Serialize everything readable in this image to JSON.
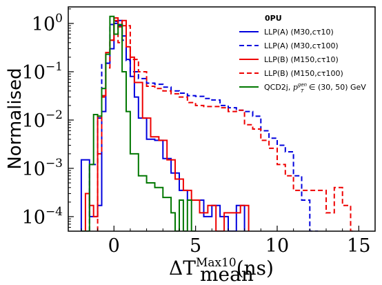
{
  "chart_data": {
    "type": "line",
    "style": "step-histogram",
    "xlabel": "ΔT",
    "xlabel_sup": "Max10",
    "xlabel_sub": "mean",
    "xlabel_unit": "(ns)",
    "ylabel": "Normalised",
    "yscale": "log",
    "xlim": [
      -2.8,
      16
    ],
    "ylim": [
      5e-05,
      2.2
    ],
    "xticks": [
      {
        "v": 0,
        "label": "0"
      },
      {
        "v": 5,
        "label": "5"
      },
      {
        "v": 10,
        "label": "10"
      },
      {
        "v": 15,
        "label": "15"
      }
    ],
    "yticks": [
      {
        "v": 0.0001,
        "base": "10",
        "exp": "−4"
      },
      {
        "v": 0.001,
        "base": "10",
        "exp": "−3"
      },
      {
        "v": 0.01,
        "base": "10",
        "exp": "−2"
      },
      {
        "v": 0.1,
        "base": "10",
        "exp": "−1"
      },
      {
        "v": 1,
        "base": "10",
        "exp": "0"
      }
    ],
    "legend": {
      "title": "0PU",
      "position": "top-right"
    },
    "series": [
      {
        "name": "LLP(A) (M30,cτ10)",
        "color": "#0000dd",
        "dash": "solid",
        "bins": [
          [
            -2.0,
            -1.5,
            0.0015
          ],
          [
            -1.5,
            -1.0,
            0.0001
          ],
          [
            -1.0,
            -0.75,
            0.00017
          ],
          [
            -0.75,
            -0.5,
            0.015
          ],
          [
            -0.5,
            -0.25,
            0.15
          ],
          [
            -0.25,
            0.0,
            0.3
          ],
          [
            0.0,
            0.25,
            1.0
          ],
          [
            0.25,
            0.5,
            1.15
          ],
          [
            0.5,
            0.75,
            0.55
          ],
          [
            0.75,
            1.0,
            0.18
          ],
          [
            1.0,
            1.25,
            0.08
          ],
          [
            1.25,
            1.5,
            0.03
          ],
          [
            1.5,
            2.0,
            0.011
          ],
          [
            2.0,
            2.5,
            0.004
          ],
          [
            2.5,
            3.0,
            0.0038
          ],
          [
            3.0,
            3.5,
            0.0016
          ],
          [
            3.5,
            4.0,
            0.0008
          ],
          [
            4.0,
            4.5,
            0.00035
          ],
          [
            4.5,
            5.0,
            0.00022
          ],
          [
            5.0,
            5.5,
            0.00022
          ],
          [
            5.5,
            6.0,
            0.0001
          ],
          [
            6.0,
            6.5,
            0.00017
          ],
          [
            6.5,
            7.0,
            0.0001
          ],
          [
            7.0,
            7.5,
            5e-05
          ],
          [
            7.5,
            8.0,
            0.00017
          ]
        ]
      },
      {
        "name": "LLP(A) (M30,cτ100)",
        "color": "#0000dd",
        "dash": "dashed",
        "bins": [
          [
            -1.5,
            -1.0,
            0.0012
          ],
          [
            -1.0,
            -0.75,
            0.011
          ],
          [
            -0.75,
            -0.5,
            0.14
          ],
          [
            -0.5,
            -0.25,
            0.15
          ],
          [
            -0.25,
            0.0,
            0.95
          ],
          [
            0.0,
            0.25,
            1.1
          ],
          [
            0.25,
            0.5,
            0.9
          ],
          [
            0.5,
            0.75,
            0.45
          ],
          [
            0.75,
            1.0,
            0.17
          ],
          [
            1.0,
            1.5,
            0.1
          ],
          [
            1.5,
            2.0,
            0.072
          ],
          [
            2.0,
            2.5,
            0.058
          ],
          [
            2.5,
            3.0,
            0.055
          ],
          [
            3.0,
            3.5,
            0.048
          ],
          [
            3.5,
            4.0,
            0.04
          ],
          [
            4.0,
            4.5,
            0.036
          ],
          [
            4.5,
            5.0,
            0.032
          ],
          [
            5.0,
            5.5,
            0.031
          ],
          [
            5.5,
            6.0,
            0.028
          ],
          [
            6.0,
            6.5,
            0.026
          ],
          [
            6.5,
            7.0,
            0.02
          ],
          [
            7.0,
            7.5,
            0.018
          ],
          [
            7.5,
            8.0,
            0.016
          ],
          [
            8.0,
            8.5,
            0.015
          ],
          [
            8.5,
            9.0,
            0.012
          ],
          [
            9.0,
            9.5,
            0.006
          ],
          [
            9.5,
            10.0,
            0.0042
          ],
          [
            10.0,
            10.5,
            0.003
          ],
          [
            10.5,
            11.0,
            0.0022
          ],
          [
            11.0,
            11.5,
            0.0007
          ],
          [
            11.5,
            12.0,
            0.00022
          ],
          [
            12.0,
            12.5,
            5e-05
          ]
        ]
      },
      {
        "name": "LLP(B) (M150,cτ10)",
        "color": "#ee0000",
        "dash": "solid",
        "bins": [
          [
            -1.75,
            -1.5,
            0.0003
          ],
          [
            -1.5,
            -1.25,
            0.00017
          ],
          [
            -1.25,
            -1.0,
            0.0001
          ],
          [
            -1.0,
            -0.75,
            0.012
          ],
          [
            -0.75,
            -0.5,
            0.032
          ],
          [
            -0.5,
            -0.25,
            0.25
          ],
          [
            -0.25,
            0.0,
            0.45
          ],
          [
            0.0,
            0.25,
            1.3
          ],
          [
            0.25,
            0.5,
            0.85
          ],
          [
            0.5,
            0.75,
            1.15
          ],
          [
            0.75,
            1.0,
            0.33
          ],
          [
            1.0,
            1.25,
            0.2
          ],
          [
            1.25,
            1.75,
            0.06
          ],
          [
            1.75,
            2.25,
            0.011
          ],
          [
            2.25,
            2.75,
            0.0045
          ],
          [
            2.75,
            3.25,
            0.0038
          ],
          [
            3.25,
            3.75,
            0.0015
          ],
          [
            3.75,
            4.25,
            0.0006
          ],
          [
            4.25,
            4.75,
            0.00035
          ],
          [
            4.75,
            5.25,
            0.00022
          ],
          [
            5.25,
            5.75,
            0.00012
          ],
          [
            5.75,
            6.25,
            0.00017
          ],
          [
            6.25,
            6.75,
            5e-05
          ],
          [
            6.75,
            7.25,
            0.00012
          ],
          [
            7.25,
            7.75,
            0.00012
          ],
          [
            7.75,
            8.25,
            0.00017
          ]
        ]
      },
      {
        "name": "LLP(B) (M150,cτ100)",
        "color": "#ee0000",
        "dash": "dashed",
        "bins": [
          [
            -1.0,
            -0.75,
            0.002
          ],
          [
            -0.75,
            -0.5,
            0.03
          ],
          [
            -0.5,
            -0.25,
            0.12
          ],
          [
            -0.25,
            0.0,
            0.45
          ],
          [
            0.0,
            0.25,
            1.15
          ],
          [
            0.25,
            0.5,
            0.4
          ],
          [
            0.5,
            1.0,
            0.9
          ],
          [
            1.0,
            1.5,
            0.18
          ],
          [
            1.5,
            2.0,
            0.1
          ],
          [
            2.0,
            2.5,
            0.05
          ],
          [
            2.5,
            3.0,
            0.045
          ],
          [
            3.0,
            3.5,
            0.04
          ],
          [
            3.5,
            4.0,
            0.035
          ],
          [
            4.0,
            4.5,
            0.03
          ],
          [
            4.5,
            5.0,
            0.023
          ],
          [
            5.0,
            5.5,
            0.02
          ],
          [
            5.5,
            6.0,
            0.019
          ],
          [
            6.0,
            6.5,
            0.019
          ],
          [
            6.5,
            7.0,
            0.018
          ],
          [
            7.0,
            7.5,
            0.015
          ],
          [
            7.5,
            8.0,
            0.016
          ],
          [
            8.0,
            8.5,
            0.008
          ],
          [
            8.5,
            9.0,
            0.0065
          ],
          [
            9.0,
            9.5,
            0.0038
          ],
          [
            9.5,
            10.0,
            0.0026
          ],
          [
            10.0,
            10.5,
            0.0012
          ],
          [
            10.5,
            11.0,
            0.0007
          ],
          [
            11.0,
            11.5,
            0.00035
          ],
          [
            11.5,
            12.0,
            0.00035
          ],
          [
            12.0,
            12.5,
            0.00035
          ],
          [
            12.5,
            13.0,
            0.00035
          ],
          [
            13.0,
            13.5,
            0.00012
          ],
          [
            13.5,
            14.0,
            0.0004
          ],
          [
            14.0,
            14.5,
            0.00017
          ],
          [
            14.5,
            14.75,
            5e-05
          ]
        ]
      },
      {
        "name": "QCD2j, p_T^gen ∈ (30, 50) GeV",
        "label_main": "QCD2j, ",
        "label_p": "p",
        "label_sub": "T",
        "label_sup": "gen",
        "label_rest": " ∈ (30, 50) GeV",
        "color": "#007700",
        "dash": "solid",
        "bins": [
          [
            -2.0,
            -1.5,
            5e-05
          ],
          [
            -1.5,
            -1.25,
            0.0012
          ],
          [
            -1.25,
            -1.0,
            0.013
          ],
          [
            -1.0,
            -0.75,
            0.012
          ],
          [
            -0.75,
            -0.5,
            0.045
          ],
          [
            -0.5,
            -0.25,
            0.23
          ],
          [
            -0.25,
            0.0,
            1.4
          ],
          [
            0.0,
            0.25,
            0.6
          ],
          [
            0.25,
            0.5,
            0.95
          ],
          [
            0.5,
            0.75,
            0.1
          ],
          [
            0.75,
            1.0,
            0.015
          ],
          [
            1.0,
            1.5,
            0.002
          ],
          [
            1.5,
            2.0,
            0.0007
          ],
          [
            2.0,
            2.5,
            0.0005
          ],
          [
            2.5,
            3.0,
            0.0004
          ],
          [
            3.0,
            3.5,
            0.00025
          ],
          [
            3.5,
            3.75,
            0.00012
          ],
          [
            3.75,
            4.0,
            5e-05
          ],
          [
            4.0,
            4.25,
            0.00022
          ],
          [
            4.25,
            4.5,
            5e-05
          ],
          [
            4.5,
            4.75,
            0.00022
          ],
          [
            4.75,
            5.0,
            5e-05
          ]
        ]
      }
    ]
  }
}
